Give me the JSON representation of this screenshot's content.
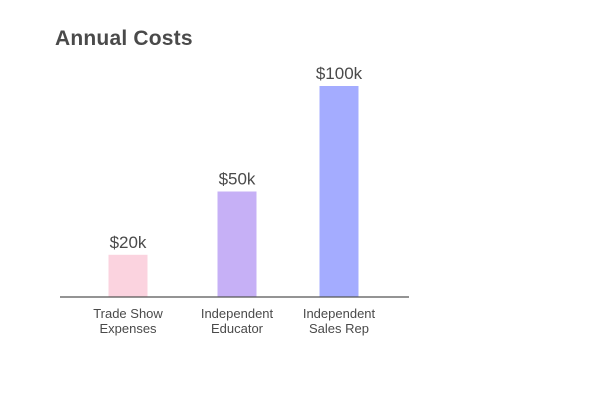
{
  "chart_data": {
    "type": "bar",
    "title": "Annual Costs",
    "categories": [
      [
        "Trade Show",
        "Expenses"
      ],
      [
        "Independent",
        "Educator"
      ],
      [
        "Independent",
        "Sales Rep"
      ]
    ],
    "values": [
      20,
      50,
      100
    ],
    "value_labels": [
      "$20k",
      "$50k",
      "$100k"
    ],
    "colors": [
      "#fbd3df",
      "#c6b0f6",
      "#a4acff"
    ],
    "axis_color": "#555555",
    "ylim": [
      0,
      100
    ],
    "grid": false,
    "legend": "none"
  }
}
